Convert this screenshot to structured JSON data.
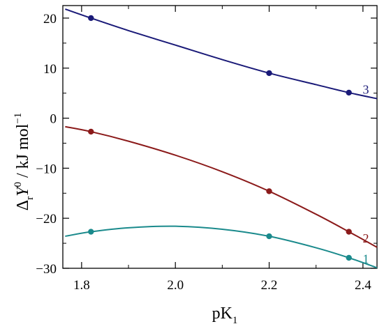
{
  "chart_data": {
    "type": "line",
    "xlabel": {
      "main": "pK",
      "sub": "1"
    },
    "ylabel": {
      "prefix": "Δ",
      "sub": "r",
      "symbol": "Y",
      "sup": "0",
      "rest": " / kJ mol",
      "unit_sup": "−1"
    },
    "xlim": [
      1.76,
      2.43
    ],
    "ylim": [
      -30,
      22.5
    ],
    "x_ticks": [
      1.8,
      2.0,
      2.2,
      2.4
    ],
    "x_tick_labels": [
      "1.8",
      "2.0",
      "2.2",
      "2.4"
    ],
    "y_ticks": [
      -30,
      -20,
      -10,
      0,
      10,
      20
    ],
    "y_tick_labels": [
      "−30",
      "−20",
      "−10",
      "0",
      "10",
      "20"
    ],
    "series": [
      {
        "label": "1",
        "color": "#1a8a8c",
        "points": {
          "x": [
            1.82,
            2.2,
            2.37
          ],
          "y": [
            -22.7,
            -23.6,
            -27.9
          ]
        },
        "curve": {
          "x": [
            1.765,
            1.82,
            1.9,
            2.0,
            2.1,
            2.2,
            2.3,
            2.37,
            2.43
          ],
          "y": [
            -23.6,
            -22.7,
            -21.9,
            -21.6,
            -22.2,
            -23.6,
            -25.9,
            -27.9,
            -29.9
          ]
        }
      },
      {
        "label": "2",
        "color": "#8b1a1a",
        "points": {
          "x": [
            1.82,
            2.2,
            2.37
          ],
          "y": [
            -2.7,
            -14.6,
            -22.7
          ]
        },
        "curve": {
          "x": [
            1.765,
            1.82,
            1.9,
            2.0,
            2.1,
            2.2,
            2.3,
            2.37,
            2.43
          ],
          "y": [
            -1.7,
            -2.7,
            -4.6,
            -7.4,
            -10.7,
            -14.6,
            -19.2,
            -22.7,
            -25.8
          ]
        }
      },
      {
        "label": "3",
        "color": "#1a1a78",
        "points": {
          "x": [
            1.82,
            2.2,
            2.37
          ],
          "y": [
            20.0,
            9.0,
            5.1
          ]
        },
        "curve": {
          "x": [
            1.765,
            1.82,
            1.9,
            2.0,
            2.1,
            2.2,
            2.3,
            2.37,
            2.43
          ],
          "y": [
            21.8,
            20.0,
            17.5,
            14.6,
            11.7,
            9.0,
            6.7,
            5.1,
            3.9
          ]
        }
      }
    ]
  }
}
